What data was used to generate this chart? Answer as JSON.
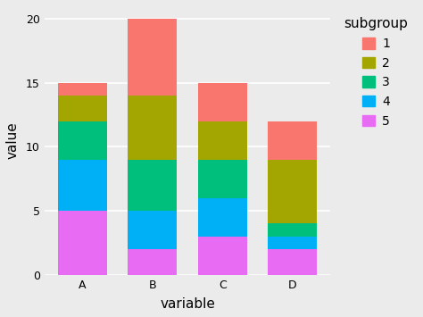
{
  "categories": [
    "A",
    "B",
    "C",
    "D"
  ],
  "subgroups": [
    "5",
    "4",
    "3",
    "2",
    "1"
  ],
  "values": {
    "5": [
      5,
      2,
      3,
      2
    ],
    "4": [
      4,
      3,
      3,
      1
    ],
    "3": [
      3,
      4,
      3,
      1
    ],
    "2": [
      2,
      5,
      3,
      5
    ],
    "1": [
      1,
      6,
      3,
      3
    ]
  },
  "colors": {
    "1": "#F8766D",
    "2": "#A3A500",
    "3": "#00BF7D",
    "4": "#00B0F6",
    "5": "#E76BF3"
  },
  "xlabel": "variable",
  "ylabel": "value",
  "legend_title": "subgroup",
  "ylim": [
    0,
    21
  ],
  "yticks": [
    0,
    5,
    10,
    15,
    20
  ],
  "panel_background": "#EBEBEB",
  "fig_background": "#EBEBEB",
  "grid_color": "#FFFFFF",
  "bar_width": 0.7,
  "axis_label_fontsize": 11,
  "tick_fontsize": 9,
  "legend_fontsize": 10,
  "legend_title_fontsize": 11
}
